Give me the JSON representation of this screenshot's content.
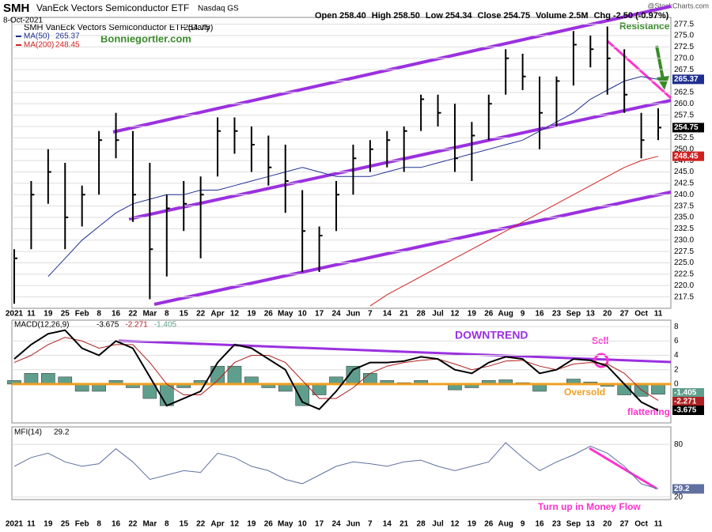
{
  "header": {
    "symbol": "SMH",
    "name": "VanEck Vectors Semiconductor ETF",
    "exchange": "Nasdaq GS",
    "date": "8-Oct-2021",
    "credit": "@StockCharts.com",
    "quote": [
      {
        "label": "Open",
        "value": "258.40"
      },
      {
        "label": "High",
        "value": "258.50"
      },
      {
        "label": "Low",
        "value": "254.34"
      },
      {
        "label": "Close",
        "value": "254.75"
      },
      {
        "label": "Volume",
        "value": "2.5M"
      },
      {
        "label": "Chg",
        "value": "-2.50 (-0.97%)"
      }
    ]
  },
  "chart_data": [
    {
      "type": "ohlc",
      "legend_title": "SMH VanEck Vectors Semiconductor ETF (Daily)",
      "annotations": [
        "Bonniegortler.com",
        "Resistance"
      ],
      "categories": [
        "2021",
        "11",
        "19",
        "25",
        "Feb",
        "8",
        "16",
        "22",
        "Mar",
        "8",
        "15",
        "22",
        "Apr",
        "12",
        "19",
        "26",
        "May",
        "10",
        "17",
        "24",
        "Jun",
        "7",
        "14",
        "21",
        "28",
        "Jul",
        "12",
        "19",
        "26",
        "Aug",
        "9",
        "16",
        "23",
        "Sep",
        "13",
        "20",
        "27",
        "Oct",
        "11"
      ],
      "high": [
        228,
        243,
        250,
        247,
        242,
        254,
        258,
        254,
        247,
        240,
        243,
        244,
        257,
        257,
        255,
        253,
        251,
        241,
        233,
        243,
        251,
        252,
        254,
        255,
        262,
        262,
        260,
        256,
        262,
        272,
        271,
        266,
        266,
        276,
        275,
        277,
        272,
        258,
        259
      ],
      "low": [
        216,
        228,
        238,
        228,
        233,
        240,
        248,
        234,
        217,
        222,
        232,
        226,
        244,
        249,
        245,
        242,
        236,
        223,
        223,
        232,
        240,
        245,
        246,
        245,
        254,
        255,
        245,
        243,
        252,
        262,
        263,
        250,
        255,
        264,
        268,
        262,
        258,
        248,
        252
      ],
      "close": [
        226,
        240,
        245,
        235,
        240,
        252,
        252,
        240,
        228,
        237,
        238,
        240,
        254,
        254,
        251,
        246,
        243,
        232,
        231,
        240,
        248,
        250,
        252,
        254,
        261,
        258,
        248,
        253,
        260,
        270,
        266,
        258,
        265,
        273,
        272,
        270,
        262,
        252,
        254.75
      ],
      "color": "#000000",
      "series": [
        {
          "name": "MA(50)",
          "color": "#1f2f8f",
          "values": [
            null,
            null,
            222,
            226,
            230,
            233,
            236,
            238,
            239,
            240,
            240,
            241,
            241,
            242,
            243,
            244,
            245,
            246,
            245,
            244,
            244,
            244,
            245,
            246,
            246,
            247,
            248,
            249,
            250,
            251,
            252,
            254,
            256,
            258,
            261,
            263,
            265,
            266,
            265.37
          ]
        },
        {
          "name": "MA(200)",
          "color": "#d02020",
          "values": [
            null,
            null,
            null,
            null,
            null,
            null,
            null,
            null,
            null,
            null,
            null,
            null,
            null,
            null,
            null,
            null,
            null,
            null,
            null,
            null,
            null,
            215.5,
            218,
            220,
            222,
            224,
            226,
            228,
            230,
            232,
            234,
            236,
            238,
            240,
            242,
            244,
            246,
            247.5,
            248.45
          ]
        }
      ],
      "ylim": [
        215,
        279
      ],
      "yticks": [
        217.5,
        {
          "value": 220,
          "label": "220.0"
        },
        222.5,
        {
          "value": 225,
          "label": "225.0"
        },
        227.5,
        {
          "value": 230,
          "label": "230.0"
        },
        232.5,
        {
          "value": 235,
          "label": "235.0"
        },
        237.5,
        {
          "value": 240,
          "label": "240.0"
        },
        242.5,
        {
          "value": 245,
          "label": "245.0"
        },
        247.5,
        {
          "value": 250,
          "label": "250.0"
        },
        252.5,
        {
          "value": 255,
          "label": "255.0"
        },
        257.5,
        {
          "value": 260,
          "label": "260.0"
        },
        262.5,
        {
          "value": 265,
          "label": "265.0"
        },
        267.5,
        {
          "value": 270,
          "label": "270.0"
        },
        272.5,
        {
          "value": 275,
          "label": "275.0"
        },
        277.5
      ],
      "grid": true
    },
    {
      "type": "macd",
      "legend_title": "MACD(12,26,9)",
      "annotations": [
        "DOWNTREND",
        "Sell",
        "Oversold",
        "flattening"
      ],
      "series": [
        {
          "name": "MACD",
          "color": "#000000",
          "values": [
            3.5,
            5.5,
            7,
            7.5,
            5,
            4,
            6,
            5,
            1,
            -3,
            -2,
            -1,
            3,
            5.5,
            5,
            3.5,
            2,
            -2.5,
            -3.5,
            -1,
            2,
            3,
            3,
            3.2,
            3.8,
            3.5,
            2,
            1.5,
            3,
            3.8,
            3.5,
            1.5,
            2,
            3.5,
            3.3,
            2.5,
            0,
            -2.5,
            -3.675
          ]
        },
        {
          "name": "Signal",
          "color": "#b02020",
          "values": [
            3,
            4,
            5.5,
            6.5,
            6,
            5,
            5.5,
            5.5,
            3,
            0,
            -1.5,
            -1.5,
            0.5,
            3,
            4,
            4,
            3,
            0.5,
            -2,
            -2,
            -0.5,
            1.5,
            2.5,
            3,
            3.3,
            3.5,
            2.8,
            2,
            2.5,
            3.2,
            3.3,
            2.5,
            2,
            2.8,
            3,
            2.8,
            1.5,
            -0.8,
            -2.271
          ]
        },
        {
          "name": "Histogram",
          "color": "#5f9e8c",
          "values": [
            0.5,
            1.5,
            1.5,
            1,
            -1,
            -1,
            0.5,
            -0.5,
            -2,
            -3,
            -0.5,
            0.5,
            2.5,
            2.5,
            1,
            -0.5,
            -1,
            -3,
            -1.5,
            1,
            2.5,
            1.5,
            0.5,
            0.2,
            0.5,
            0,
            -0.8,
            -0.5,
            0.5,
            0.6,
            0.2,
            -1,
            0,
            0.7,
            0.3,
            -0.3,
            -1.5,
            -1.7,
            -1.405
          ]
        }
      ],
      "ylim": [
        -5.4,
        8.9
      ],
      "yticks": [
        0,
        2,
        4,
        6,
        8
      ],
      "grid": true
    },
    {
      "type": "line",
      "legend_title": "MFI(14)",
      "annotations": [
        "Turn up in Money Flow"
      ],
      "categories": [
        "2021",
        "11",
        "19",
        "25",
        "Feb",
        "8",
        "16",
        "22",
        "Mar",
        "8",
        "15",
        "22",
        "Apr",
        "12",
        "19",
        "26",
        "May",
        "10",
        "17",
        "24",
        "Jun",
        "7",
        "14",
        "21",
        "28",
        "Jul",
        "12",
        "19",
        "26",
        "Aug",
        "9",
        "16",
        "23",
        "Sep",
        "13",
        "20",
        "27",
        "Oct",
        "11"
      ],
      "series": [
        {
          "name": "MFI",
          "color": "#6070a0",
          "values": [
            55,
            65,
            70,
            60,
            55,
            58,
            75,
            60,
            40,
            45,
            50,
            48,
            70,
            65,
            55,
            50,
            40,
            35,
            45,
            55,
            60,
            58,
            55,
            60,
            62,
            55,
            50,
            55,
            60,
            82,
            65,
            50,
            60,
            68,
            78,
            70,
            55,
            35,
            29.2
          ]
        }
      ],
      "ylim": [
        17,
        100
      ],
      "yticks": [
        20,
        80
      ],
      "grid": true
    }
  ]
}
